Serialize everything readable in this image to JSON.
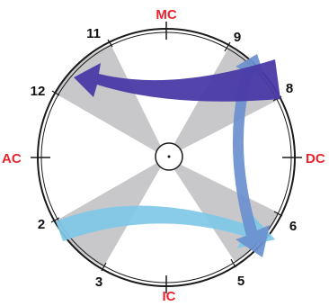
{
  "colors": {
    "angle_label": "#e8232c",
    "house_label": "#111111",
    "sector": "#c8c8ca",
    "arrow_top": "#4a3aa6",
    "arrow_right": "#6a90cf",
    "arrow_bottom": "#7fc8e8",
    "outline": "#1a1a1a"
  },
  "angles": {
    "mc": "MC",
    "ic": "IC",
    "ac": "AC",
    "dc": "DC"
  },
  "houses": {
    "h11": "11",
    "h9": "9",
    "h12": "12",
    "h8": "8",
    "h2": "2",
    "h6": "6",
    "h3": "3",
    "h5": "5"
  }
}
